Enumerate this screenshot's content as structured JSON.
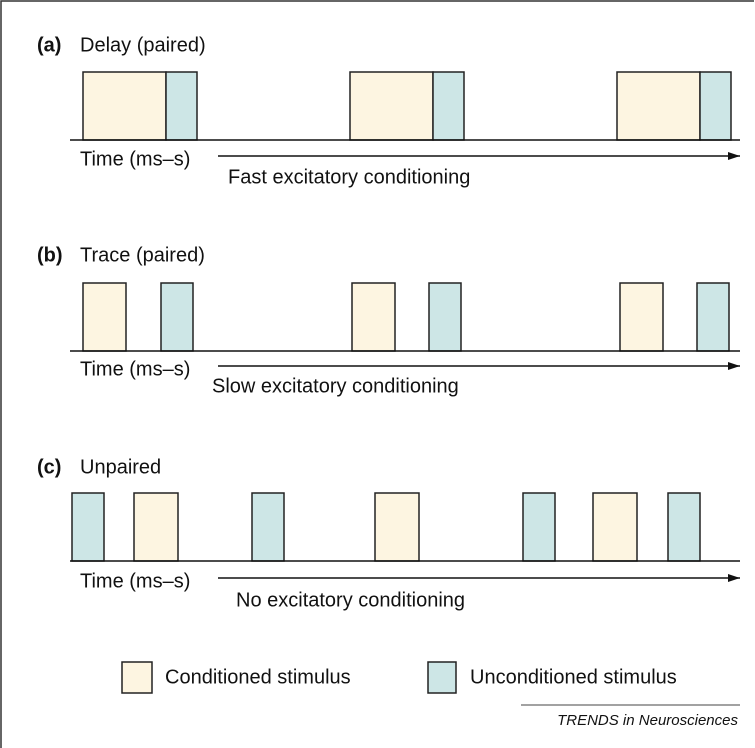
{
  "panels": [
    {
      "label": "(a)",
      "title": "Delay (paired)",
      "axis_label": "Time (ms–s)",
      "outcome": "Fast excitatory conditioning"
    },
    {
      "label": "(b)",
      "title": "Trace (paired)",
      "axis_label": "Time (ms–s)",
      "outcome": "Slow excitatory conditioning"
    },
    {
      "label": "(c)",
      "title": "Unpaired",
      "axis_label": "Time (ms–s)",
      "outcome": "No excitatory conditioning"
    }
  ],
  "legend": [
    "Conditioned stimulus",
    "Unconditioned stimulus"
  ],
  "footer": "TRENDS in Neurosciences"
}
